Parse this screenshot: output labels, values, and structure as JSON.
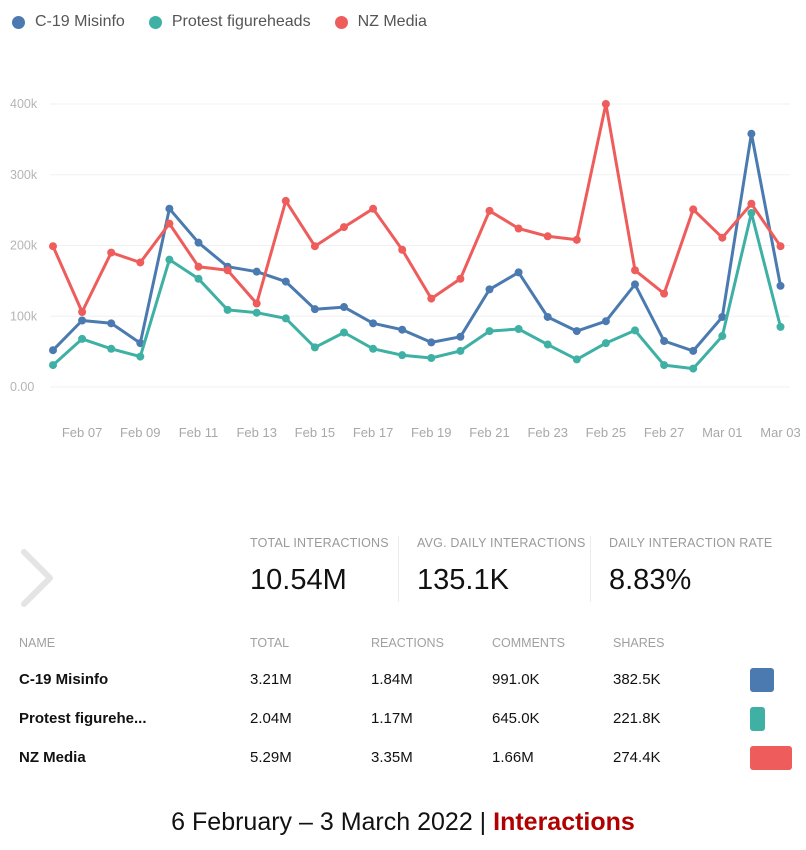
{
  "chart_data": {
    "type": "line",
    "x": [
      "Feb 06",
      "Feb 07",
      "Feb 08",
      "Feb 09",
      "Feb 10",
      "Feb 11",
      "Feb 12",
      "Feb 13",
      "Feb 14",
      "Feb 15",
      "Feb 16",
      "Feb 17",
      "Feb 18",
      "Feb 19",
      "Feb 20",
      "Feb 21",
      "Feb 22",
      "Feb 23",
      "Feb 24",
      "Feb 25",
      "Feb 26",
      "Feb 27",
      "Feb 28",
      "Mar 01",
      "Mar 02",
      "Mar 03"
    ],
    "x_tick_labels": [
      "Feb 07",
      "Feb 09",
      "Feb 11",
      "Feb 13",
      "Feb 15",
      "Feb 17",
      "Feb 19",
      "Feb 21",
      "Feb 23",
      "Feb 25",
      "Feb 27",
      "Mar 01",
      "Mar 03"
    ],
    "y_tick_labels": [
      "0.00",
      "100k",
      "200k",
      "300k",
      "400k"
    ],
    "ylim": [
      0,
      400000
    ],
    "grid": true,
    "legend_position": "top-left",
    "series": [
      {
        "name": "C-19 Misinfo",
        "color": "#4a7ab0",
        "values": [
          52000,
          94000,
          90000,
          62000,
          252000,
          204000,
          170000,
          163000,
          149000,
          110000,
          113000,
          90000,
          81000,
          63000,
          71000,
          138000,
          162000,
          99000,
          79000,
          93000,
          145000,
          65000,
          51000,
          99000,
          358000,
          143000
        ]
      },
      {
        "name": "Protest figureheads",
        "color": "#3fb0a4",
        "values": [
          31000,
          68000,
          54000,
          43000,
          180000,
          153000,
          109000,
          105000,
          97000,
          56000,
          77000,
          54000,
          45000,
          41000,
          51000,
          79000,
          82000,
          60000,
          39000,
          62000,
          80000,
          31000,
          26000,
          72000,
          246000,
          85000
        ]
      },
      {
        "name": "NZ Media",
        "color": "#ee5c5c",
        "values": [
          199000,
          106000,
          190000,
          176000,
          231000,
          170000,
          165000,
          118000,
          263000,
          199000,
          226000,
          252000,
          194000,
          125000,
          153000,
          249000,
          224000,
          213000,
          208000,
          400000,
          165000,
          132000,
          251000,
          211000,
          259000,
          199000
        ]
      }
    ]
  },
  "stats": {
    "total_label": "TOTAL INTERACTIONS",
    "total_value": "10.54M",
    "avg_label": "AVG. DAILY INTERACTIONS",
    "avg_value": "135.1K",
    "rate_label": "DAILY INTERACTION RATE",
    "rate_value": "8.83%"
  },
  "table": {
    "headers": [
      "NAME",
      "TOTAL",
      "REACTIONS",
      "COMMENTS",
      "SHARES"
    ],
    "rows": [
      {
        "name": "C-19 Misinfo",
        "total": "3.21M",
        "reactions": "1.84M",
        "comments": "991.0K",
        "shares": "382.5K",
        "color": "#4a7ab0"
      },
      {
        "name": "Protest figurehe...",
        "total": "2.04M",
        "reactions": "1.17M",
        "comments": "645.0K",
        "shares": "221.8K",
        "color": "#3fb0a4"
      },
      {
        "name": "NZ Media",
        "total": "5.29M",
        "reactions": "3.35M",
        "comments": "1.66M",
        "shares": "274.4K",
        "color": "#ee5c5c"
      }
    ]
  },
  "icons": {
    "pager": "chevron-right-icon"
  },
  "caption": {
    "date_range": "6 February – 3 March 2022",
    "separator": " | ",
    "metric": "Interactions"
  }
}
